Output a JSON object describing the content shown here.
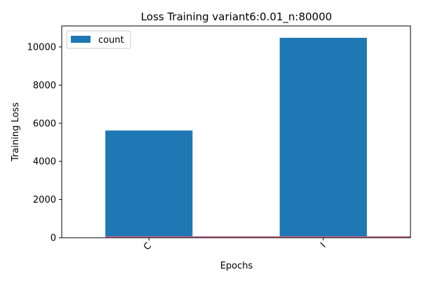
{
  "chart_data": {
    "type": "bar",
    "title": "Loss Training variant6:0.01_n:80000",
    "xlabel": "Epochs",
    "ylabel": "Training Loss",
    "categories": [
      "C",
      "I"
    ],
    "series": [
      {
        "name": "count",
        "values": [
          5620,
          10480
        ],
        "color": "#1f77b4"
      }
    ],
    "overlay_line": {
      "values": [
        40,
        40
      ],
      "color": "#c76d8f"
    },
    "ylim": [
      0,
      11100
    ],
    "yticks": [
      0,
      2000,
      4000,
      6000,
      8000,
      10000
    ],
    "ytick_labels": [
      "0",
      "2000",
      "4000",
      "6000",
      "8000",
      "10000"
    ],
    "xtick_rotation": 45,
    "grid": false,
    "legend_position": "top-left"
  }
}
